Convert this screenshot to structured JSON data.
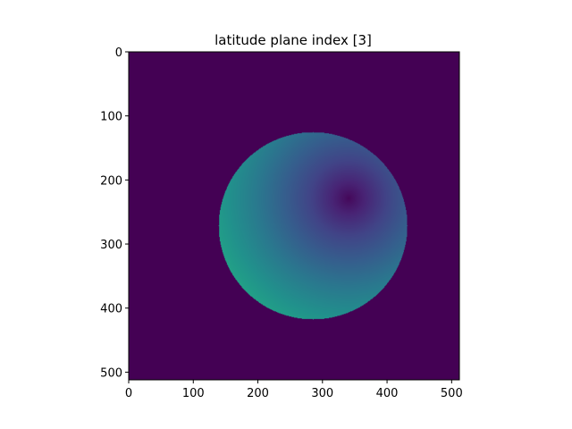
{
  "chart_data": {
    "type": "heatmap",
    "title": "latitude plane index [3]",
    "xlabel": "",
    "ylabel": "",
    "image_shape": [
      512,
      512
    ],
    "xlim": [
      0,
      512
    ],
    "ylim": [
      512,
      0
    ],
    "colormap": "viridis",
    "x_ticks": [
      {
        "value": 0,
        "label": "0"
      },
      {
        "value": 100,
        "label": "100"
      },
      {
        "value": 200,
        "label": "200"
      },
      {
        "value": 300,
        "label": "300"
      },
      {
        "value": 400,
        "label": "400"
      },
      {
        "value": 500,
        "label": "500"
      }
    ],
    "y_ticks": [
      {
        "value": 0,
        "label": "0"
      },
      {
        "value": 100,
        "label": "100"
      },
      {
        "value": 200,
        "label": "200"
      },
      {
        "value": 300,
        "label": "300"
      },
      {
        "value": 400,
        "label": "400"
      },
      {
        "value": 500,
        "label": "500"
      }
    ],
    "background_value": 0.0,
    "disk": {
      "center_col": 285,
      "center_row": 271,
      "radius": 146
    },
    "minimum_point": {
      "col": 340,
      "row": 228,
      "value": 0.02
    },
    "maximum_value_side": "left",
    "value_range": [
      0,
      1
    ]
  },
  "colors": {
    "background": "#ffffff",
    "frame": "#000000",
    "viridis_low": "#440154",
    "viridis_mid": "#21918c",
    "viridis_high": "#1fa187"
  }
}
